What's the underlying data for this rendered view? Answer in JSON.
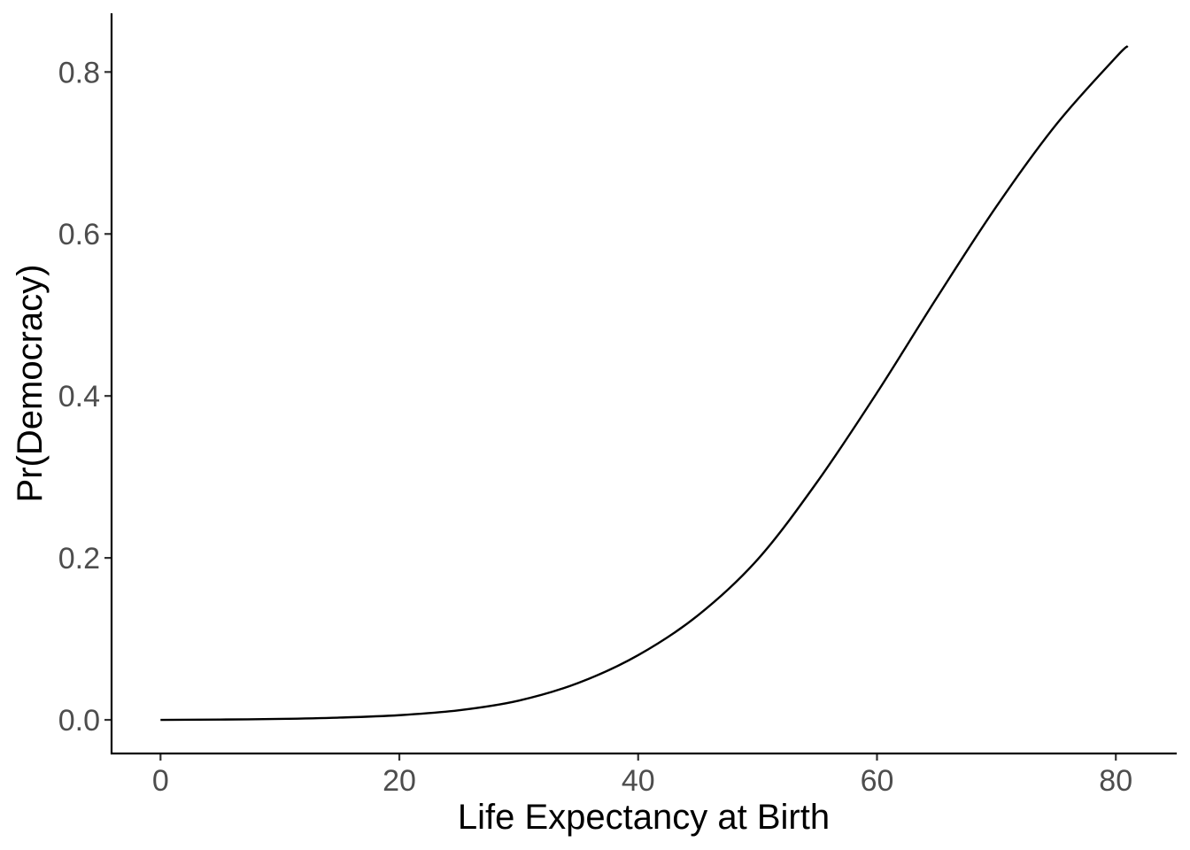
{
  "chart_data": {
    "type": "line",
    "title": "",
    "xlabel": "Life Expectancy at Birth",
    "ylabel": "Pr(Democracy)",
    "xlim": [
      -4.1,
      85.1
    ],
    "ylim": [
      -0.0415,
      0.8725
    ],
    "x_ticks": [
      0,
      20,
      40,
      60,
      80
    ],
    "x_tick_labels": [
      "0",
      "20",
      "40",
      "60",
      "80"
    ],
    "y_ticks": [
      0,
      0.2,
      0.4,
      0.6,
      0.8
    ],
    "y_tick_labels": [
      "0.0",
      "0.2",
      "0.4",
      "0.6",
      "0.8"
    ],
    "grid": false,
    "legend": "none",
    "series": [
      {
        "color": "#000000",
        "x": [
          0,
          5,
          10,
          15,
          20,
          25,
          30,
          35,
          40,
          45,
          50,
          55,
          60,
          65,
          70,
          75,
          80,
          81
        ],
        "y": [
          0.0,
          0.0004,
          0.0012,
          0.0028,
          0.0058,
          0.0119,
          0.0238,
          0.0457,
          0.0799,
          0.129,
          0.198,
          0.294,
          0.404,
          0.521,
          0.634,
          0.735,
          0.818,
          0.832
        ]
      }
    ]
  }
}
